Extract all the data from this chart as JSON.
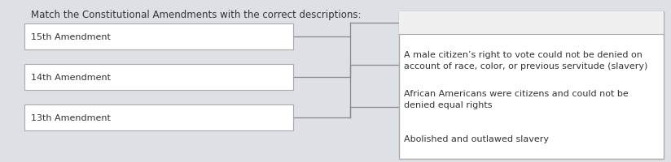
{
  "title": "Match the Constitutional Amendments with the correct descriptions:",
  "background_color": "#e8eaed",
  "page_bg": "#dde0e5",
  "left_boxes": [
    {
      "label": "15th Amendment"
    },
    {
      "label": "14th Amendment"
    },
    {
      "label": "13th Amendment"
    }
  ],
  "right_box_items": [
    "A male citizen’s right to vote could not be denied on\naccount of race, color, or previous servitude (slavery)",
    "African Americans were citizens and could not be\ndenied equal rights",
    "Abolished and outlawed slavery"
  ],
  "top_cursor": "I",
  "top_caret": "ˆ",
  "box_facecolor": "#ffffff",
  "box_edgecolor": "#aaaaaa",
  "line_color": "#888888",
  "text_color": "#333333",
  "title_fontsize": 8.5,
  "label_fontsize": 8.0,
  "item_fontsize": 8.0
}
